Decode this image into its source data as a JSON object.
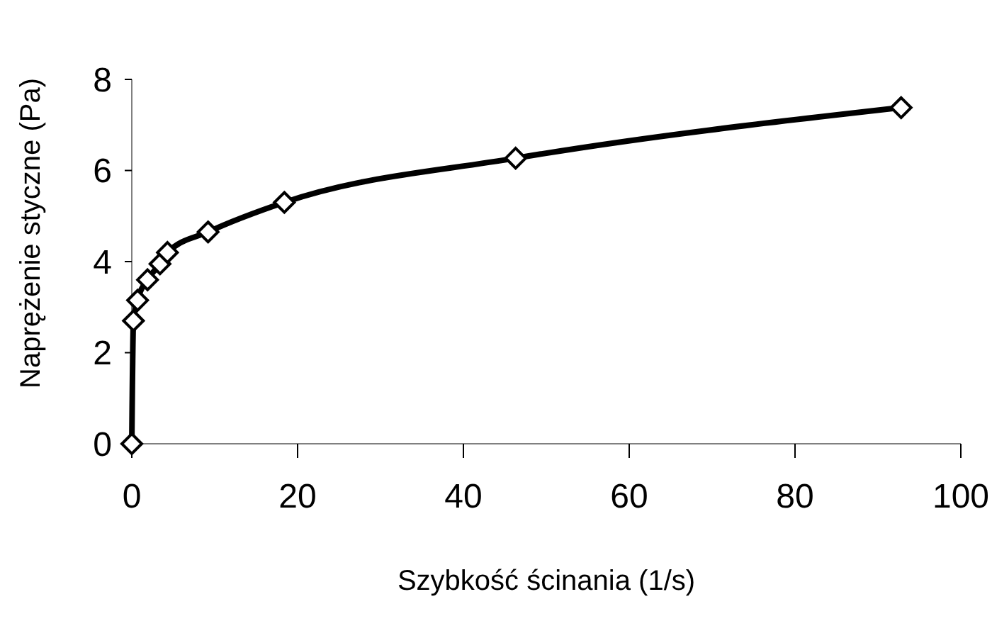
{
  "chart_data": {
    "type": "line",
    "xlabel": "Szybkość ścinania (1/s)",
    "ylabel": "Naprężenie styczne (Pa)",
    "xlim": [
      0,
      100
    ],
    "xticks": [
      0,
      20,
      40,
      60,
      80,
      100
    ],
    "ylim": [
      0,
      8
    ],
    "yticks": [
      0,
      2,
      4,
      6,
      8
    ],
    "grid": false,
    "marker": "diamond",
    "line_style": "solid",
    "series": [
      {
        "color": "#000000",
        "x": [
          0,
          0.2,
          0.7,
          1.9,
          3.4,
          4.3,
          9.2,
          18.4,
          46.3,
          92.8
        ],
        "values": [
          0,
          2.7,
          3.15,
          3.6,
          3.95,
          4.2,
          4.65,
          5.3,
          6.27,
          7.38
        ]
      }
    ]
  }
}
